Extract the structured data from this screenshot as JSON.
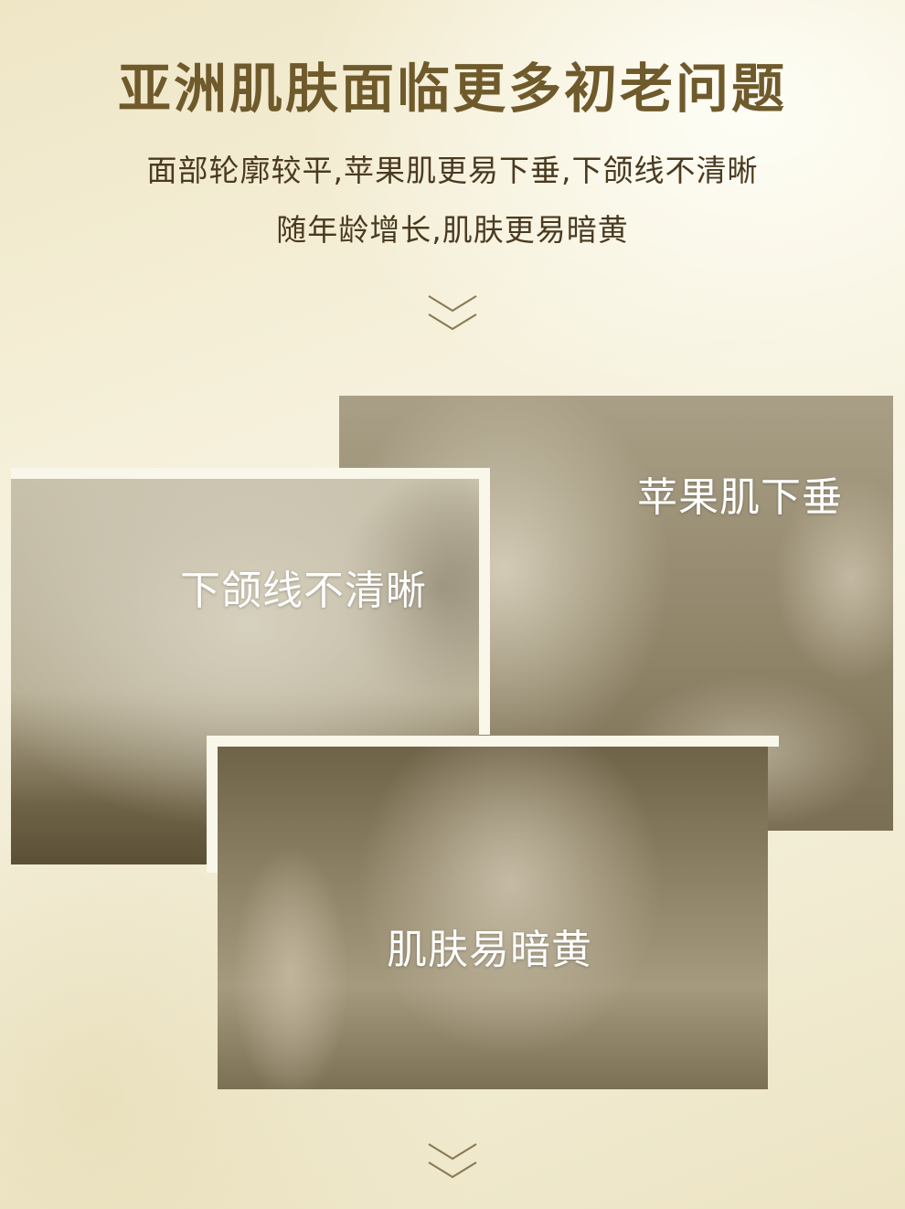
{
  "header": {
    "title": "亚洲肌肤面临更多初老问题",
    "subtitle_line1": "面部轮廓较平,苹果肌更易下垂,下颌线不清晰",
    "subtitle_line2": "随年龄增长,肌肤更易暗黄"
  },
  "photos": {
    "apple": {
      "label": "苹果肌下垂"
    },
    "jaw": {
      "label": "下颌线不清晰"
    },
    "skin": {
      "label": "肌肤易暗黄"
    }
  },
  "icons": {
    "arrow_top": "double-chevron-down-icon",
    "arrow_bottom": "double-chevron-down-icon"
  },
  "colors": {
    "title": "#6f5a2c",
    "subtitle": "#4a3a20",
    "chevron": "#8a7a55"
  }
}
